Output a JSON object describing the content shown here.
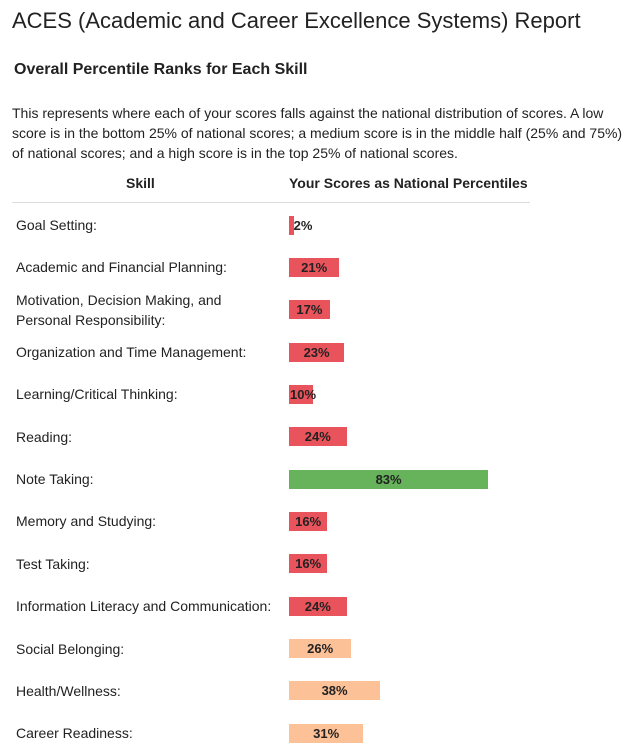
{
  "header": {
    "title": "ACES (Academic and Career Excellence Systems) Report",
    "subtitle": "Overall Percentile Ranks for Each Skill",
    "description": "This represents where each of your scores falls against the national distribution of scores. A low score is in the bottom 25% of national scores; a medium score is in the middle half (25% and 75%) of national scores; and a high score is in the top 25% of national scores."
  },
  "table": {
    "columns": [
      "Skill",
      "Your Scores as National Percentiles"
    ],
    "rows": [
      {
        "skill": "Goal Setting:",
        "value": 2,
        "label": "2%",
        "color": "#e9535b"
      },
      {
        "skill": "Academic and Financial Planning:",
        "value": 21,
        "label": "21%",
        "color": "#e9535b"
      },
      {
        "skill": "Motivation, Decision Making, and Personal Responsibility:",
        "value": 17,
        "label": "17%",
        "color": "#e9535b"
      },
      {
        "skill": "Organization and Time Management:",
        "value": 23,
        "label": "23%",
        "color": "#e9535b"
      },
      {
        "skill": "Learning/Critical Thinking:",
        "value": 10,
        "label": "10%",
        "color": "#e9535b"
      },
      {
        "skill": "Reading:",
        "value": 24,
        "label": "24%",
        "color": "#e9535b"
      },
      {
        "skill": "Note Taking:",
        "value": 83,
        "label": "83%",
        "color": "#66b35c"
      },
      {
        "skill": "Memory and Studying:",
        "value": 16,
        "label": "16%",
        "color": "#e9535b"
      },
      {
        "skill": "Test Taking:",
        "value": 16,
        "label": "16%",
        "color": "#e9535b"
      },
      {
        "skill": "Information Literacy and Communication:",
        "value": 24,
        "label": "24%",
        "color": "#e9535b"
      },
      {
        "skill": "Social Belonging:",
        "value": 26,
        "label": "26%",
        "color": "#fdc197"
      },
      {
        "skill": "Health/Wellness:",
        "value": 38,
        "label": "38%",
        "color": "#fdc197"
      },
      {
        "skill": "Career Readiness:",
        "value": 31,
        "label": "31%",
        "color": "#fdc197"
      }
    ]
  }
}
